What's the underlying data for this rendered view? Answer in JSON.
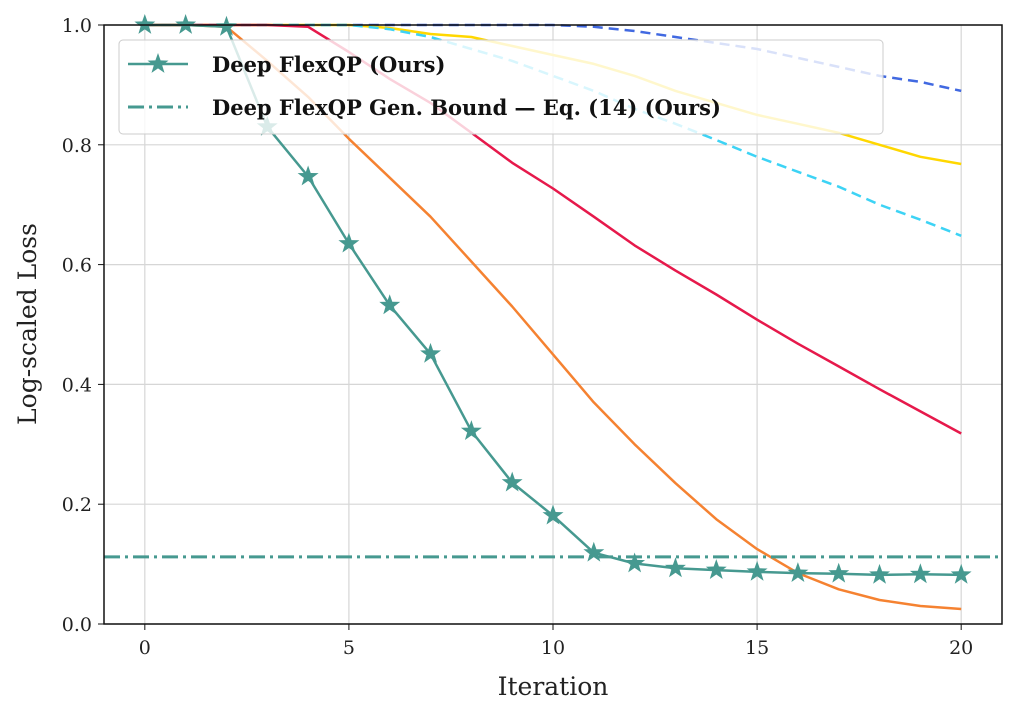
{
  "chart_data": {
    "type": "line",
    "title": "",
    "xlabel": "Iteration",
    "ylabel": "Log-scaled Loss",
    "xlim": [
      -1,
      21
    ],
    "ylim": [
      0,
      1
    ],
    "xticks": [
      "0",
      "5",
      "10",
      "15",
      "20"
    ],
    "yticks": [
      "0.0",
      "0.2",
      "0.4",
      "0.6",
      "0.8",
      "1.0"
    ],
    "grid": true,
    "legend_position": "top-left",
    "x": [
      0,
      1,
      2,
      3,
      4,
      5,
      6,
      7,
      8,
      9,
      10,
      11,
      12,
      13,
      14,
      15,
      16,
      17,
      18,
      19,
      20
    ],
    "series": [
      {
        "color": "#4169e1",
        "style": "dashed",
        "values": [
          1,
          1,
          1,
          1,
          1,
          1,
          1,
          1,
          1,
          1,
          1,
          0.997,
          0.99,
          0.98,
          0.97,
          0.96,
          0.945,
          0.93,
          0.915,
          0.905,
          0.89
        ]
      },
      {
        "color": "#ffd700",
        "style": "solid",
        "values": [
          1,
          1,
          1,
          1,
          1,
          1,
          0.995,
          0.985,
          0.98,
          0.965,
          0.95,
          0.935,
          0.915,
          0.89,
          0.87,
          0.85,
          0.835,
          0.82,
          0.8,
          0.78,
          0.768
        ]
      },
      {
        "color": "#3dd3f5",
        "style": "dashed",
        "values": [
          1,
          1,
          1,
          1,
          1,
          1,
          0.993,
          0.98,
          0.96,
          0.94,
          0.915,
          0.89,
          0.86,
          0.835,
          0.808,
          0.78,
          0.755,
          0.73,
          0.7,
          0.675,
          0.648
        ]
      },
      {
        "color": "#e6194b",
        "style": "solid",
        "values": [
          1,
          1,
          1,
          1,
          0.997,
          0.955,
          0.91,
          0.87,
          0.82,
          0.77,
          0.727,
          0.68,
          0.632,
          0.59,
          0.55,
          0.508,
          0.468,
          0.43,
          0.392,
          0.355,
          0.318
        ]
      },
      {
        "color": "#f58231",
        "style": "solid",
        "values": [
          1,
          1,
          0.997,
          0.94,
          0.88,
          0.81,
          0.745,
          0.68,
          0.605,
          0.53,
          0.45,
          0.37,
          0.3,
          0.235,
          0.175,
          0.125,
          0.085,
          0.058,
          0.04,
          0.03,
          0.025
        ]
      },
      {
        "name": "Deep FlexQP (Ours)",
        "color": "#469990",
        "style": "solid",
        "marker": "star",
        "values": [
          1,
          1,
          0.997,
          0.83,
          0.747,
          0.635,
          0.532,
          0.451,
          0.322,
          0.236,
          0.181,
          0.119,
          0.101,
          0.093,
          0.09,
          0.087,
          0.085,
          0.084,
          0.082,
          0.083,
          0.082
        ]
      }
    ],
    "hlines": [
      {
        "name": "Deep FlexQP Gen. Bound — Eq. (14) (Ours)",
        "color": "#469990",
        "style": "dashdot",
        "value": 0.112
      }
    ]
  }
}
